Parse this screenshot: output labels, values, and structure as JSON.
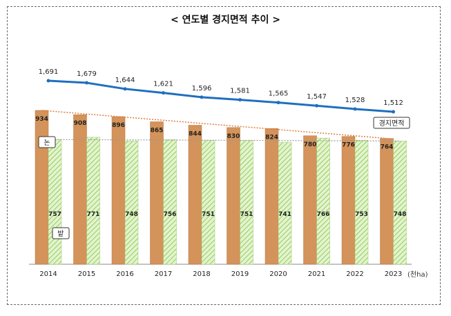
{
  "chart_data": {
    "type": "bar",
    "title": "< 연도별 경지면적 추이 >",
    "unit_label": "(천ha)",
    "categories": [
      "2014",
      "2015",
      "2016",
      "2017",
      "2018",
      "2019",
      "2020",
      "2021",
      "2022",
      "2023"
    ],
    "series": [
      {
        "name": "논",
        "type": "bar",
        "color": "#d4935a",
        "values": [
          934,
          908,
          896,
          865,
          844,
          830,
          824,
          780,
          776,
          764
        ]
      },
      {
        "name": "밭",
        "type": "bar",
        "color": "#cde8a8",
        "values": [
          757,
          771,
          748,
          756,
          751,
          751,
          741,
          766,
          753,
          748
        ]
      },
      {
        "name": "경지면적",
        "type": "line",
        "color": "#1f6fbf",
        "values": [
          1691,
          1679,
          1644,
          1621,
          1596,
          1581,
          1565,
          1547,
          1528,
          1512
        ],
        "labels": [
          "1,691",
          "1,679",
          "1,644",
          "1,621",
          "1,596",
          "1,581",
          "1,565",
          "1,547",
          "1,528",
          "1,512"
        ]
      }
    ],
    "trendlines": [
      {
        "series": "논",
        "style": "dotted",
        "color": "#e07b39"
      },
      {
        "series": "밭",
        "style": "dotted",
        "color": "#999999"
      }
    ],
    "grid": false,
    "legend": "inline labels"
  }
}
